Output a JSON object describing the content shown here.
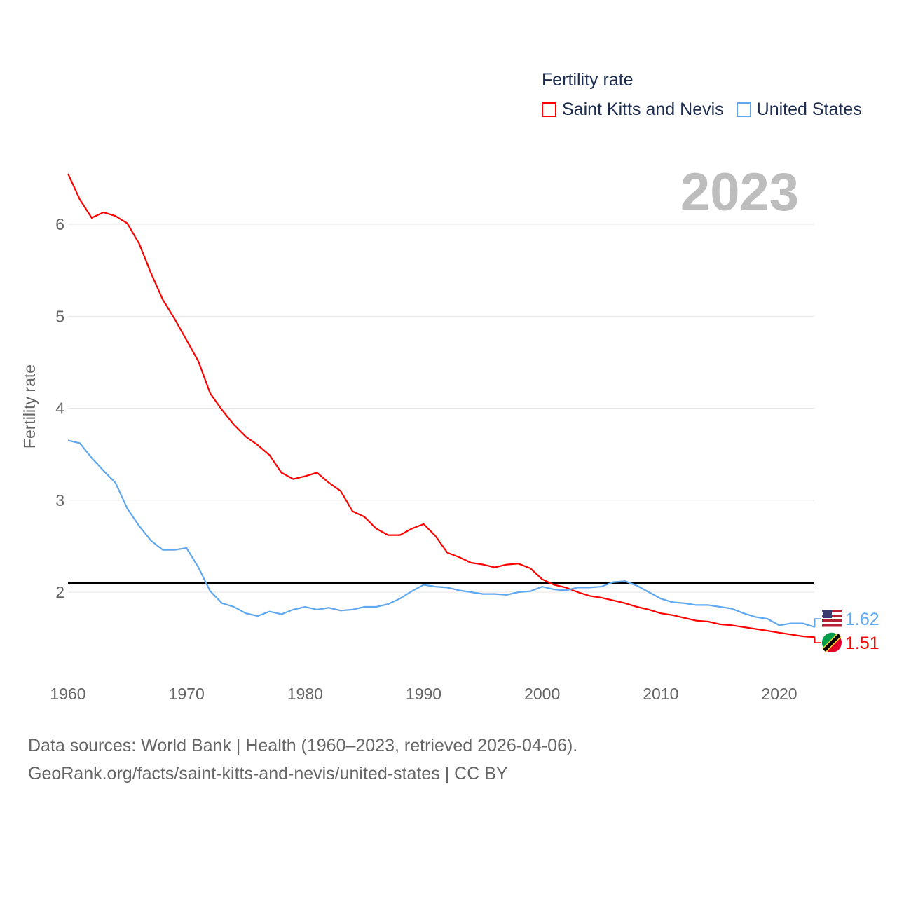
{
  "chart_data": {
    "type": "line",
    "legend_title": "Fertility rate",
    "ylabel": "Fertility rate",
    "year_label": "2023",
    "ylim": [
      0.8,
      6.6
    ],
    "xlim": [
      1960,
      2023
    ],
    "yticks": [
      "2",
      "3",
      "4",
      "5",
      "6"
    ],
    "xticks": [
      "1960",
      "1970",
      "1980",
      "1990",
      "2000",
      "2010",
      "2020"
    ],
    "reference_line": 2.1,
    "x": [
      1960,
      1961,
      1962,
      1963,
      1964,
      1965,
      1966,
      1967,
      1968,
      1969,
      1970,
      1971,
      1972,
      1973,
      1974,
      1975,
      1976,
      1977,
      1978,
      1979,
      1980,
      1981,
      1982,
      1983,
      1984,
      1985,
      1986,
      1987,
      1988,
      1989,
      1990,
      1991,
      1992,
      1993,
      1994,
      1995,
      1996,
      1997,
      1998,
      1999,
      2000,
      2001,
      2002,
      2003,
      2004,
      2005,
      2006,
      2007,
      2008,
      2009,
      2010,
      2011,
      2012,
      2013,
      2014,
      2015,
      2016,
      2017,
      2018,
      2019,
      2020,
      2021,
      2022,
      2023
    ],
    "series": [
      {
        "name": "Saint Kitts and Nevis",
        "color": "#ff0000",
        "end_label": "1.51",
        "values": [
          6.55,
          6.27,
          6.07,
          6.13,
          6.09,
          6.01,
          5.79,
          5.47,
          5.18,
          4.97,
          4.74,
          4.51,
          4.16,
          3.98,
          3.82,
          3.69,
          3.6,
          3.49,
          3.3,
          3.23,
          3.26,
          3.3,
          3.19,
          3.1,
          2.88,
          2.82,
          2.69,
          2.62,
          2.62,
          2.69,
          2.74,
          2.61,
          2.43,
          2.38,
          2.32,
          2.3,
          2.27,
          2.3,
          2.31,
          2.26,
          2.14,
          2.08,
          2.05,
          2.0,
          1.96,
          1.94,
          1.91,
          1.88,
          1.84,
          1.81,
          1.77,
          1.75,
          1.72,
          1.69,
          1.68,
          1.65,
          1.64,
          1.62,
          1.6,
          1.58,
          1.56,
          1.54,
          1.52,
          1.51
        ]
      },
      {
        "name": "United States",
        "color": "#5fa8f0",
        "end_label": "1.62",
        "values": [
          3.65,
          3.62,
          3.46,
          3.32,
          3.19,
          2.91,
          2.72,
          2.56,
          2.46,
          2.46,
          2.48,
          2.27,
          2.01,
          1.88,
          1.84,
          1.77,
          1.74,
          1.79,
          1.76,
          1.81,
          1.84,
          1.81,
          1.83,
          1.8,
          1.81,
          1.84,
          1.84,
          1.87,
          1.93,
          2.01,
          2.08,
          2.06,
          2.05,
          2.02,
          2.0,
          1.98,
          1.98,
          1.97,
          2.0,
          2.01,
          2.06,
          2.03,
          2.02,
          2.05,
          2.05,
          2.06,
          2.11,
          2.12,
          2.07,
          2.0,
          1.93,
          1.89,
          1.88,
          1.86,
          1.86,
          1.84,
          1.82,
          1.77,
          1.73,
          1.71,
          1.64,
          1.66,
          1.66,
          1.62
        ]
      }
    ]
  },
  "source": {
    "line1": "Data sources: World Bank | Health (1960–2023, retrieved 2026-04-06).",
    "line2": "GeoRank.org/facts/saint-kitts-and-nevis/united-states | CC BY"
  }
}
